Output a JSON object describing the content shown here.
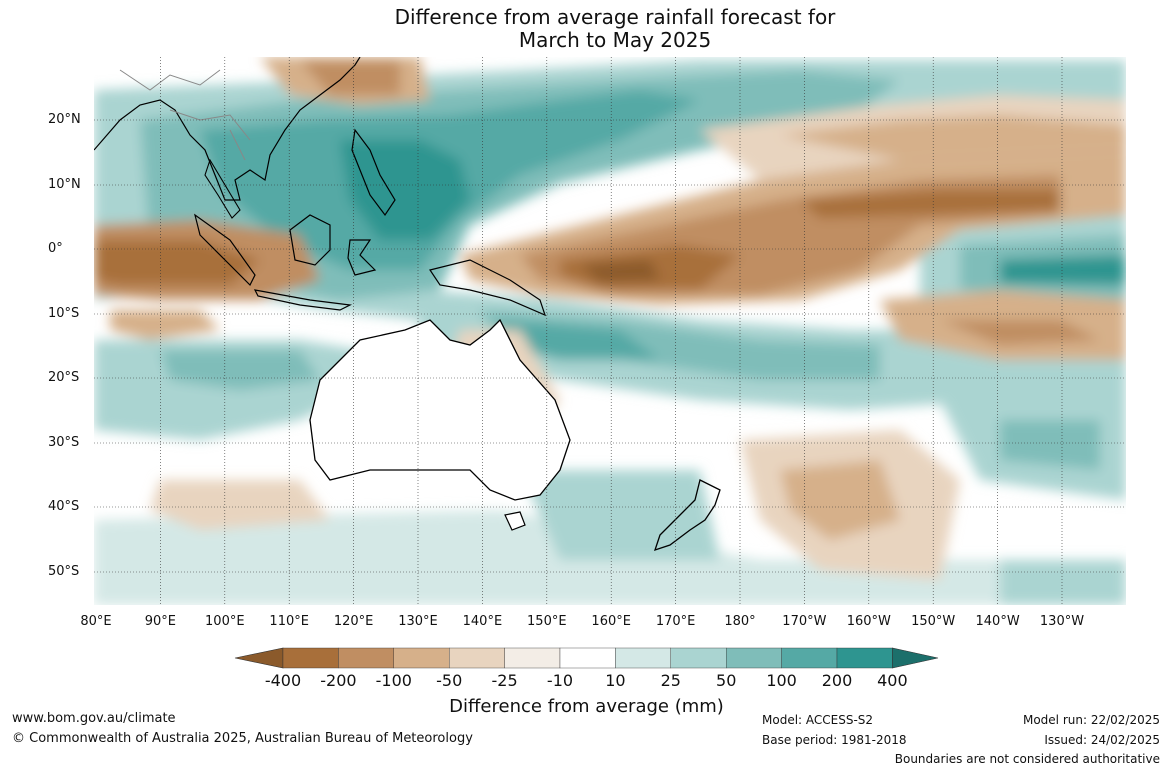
{
  "title": {
    "line1": "Difference from average rainfall forecast for",
    "line2": "March to May 2025"
  },
  "axes": {
    "lat_labels": [
      "20°N",
      "10°N",
      "0°",
      "10°S",
      "20°S",
      "30°S",
      "40°S",
      "50°S"
    ],
    "lon_labels": [
      "80°E",
      "90°E",
      "100°E",
      "110°E",
      "120°E",
      "130°E",
      "140°E",
      "150°E",
      "160°E",
      "170°E",
      "180°",
      "170°W",
      "160°W",
      "150°W",
      "140°W",
      "130°W"
    ]
  },
  "colorbar": {
    "title": "Difference from average (mm)",
    "labels": [
      "-400",
      "-200",
      "-100",
      "-50",
      "-25",
      "-10",
      "10",
      "25",
      "50",
      "100",
      "200",
      "400"
    ],
    "colors": [
      "#8b5a2b",
      "#a86f3a",
      "#c08e62",
      "#d6b08a",
      "#e8d4bf",
      "#f3ede6",
      "#ffffff",
      "#d4e8e6",
      "#aad4d1",
      "#7fbdb9",
      "#55a9a5",
      "#2e9590",
      "#1c6f6b"
    ]
  },
  "footer": {
    "website": "www.bom.gov.au/climate",
    "copyright": "© Commonwealth of Australia 2025, Australian Bureau of Meteorology",
    "model": "Model: ACCESS-S2",
    "base_period": "Base period: 1981-2018",
    "model_run": "Model run: 22/02/2025",
    "issued": "Issued: 24/02/2025",
    "disclaimer": "Boundaries are not considered authoritative"
  }
}
